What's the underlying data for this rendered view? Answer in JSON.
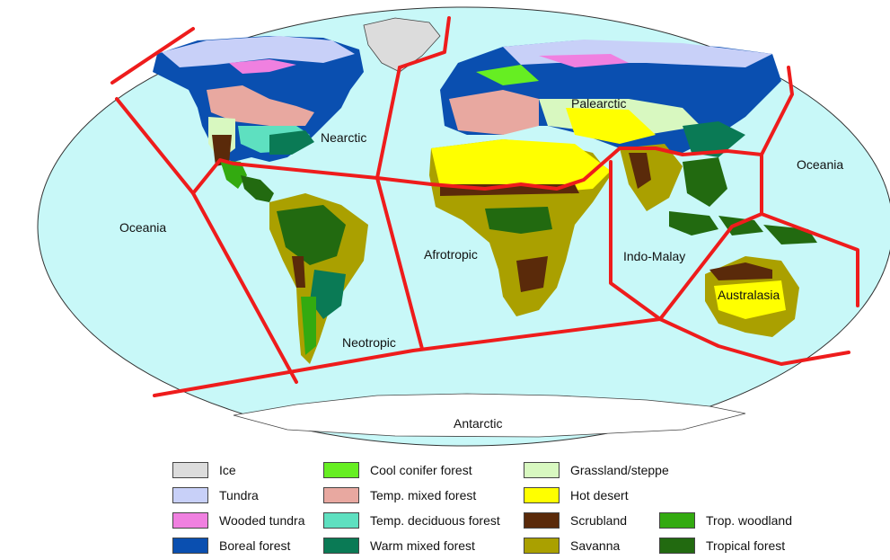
{
  "regions": {
    "nearctic": "Nearctic",
    "palearctic": "Palearctic",
    "oceania_east": "Oceania",
    "oceania_west": "Oceania",
    "afrotropic": "Afrotropic",
    "indo_malay": "Indo-Malay",
    "neotropic": "Neotropic",
    "australasia": "Australasia",
    "antarctic": "Antarctic"
  },
  "legend": [
    {
      "label": "Ice",
      "color": "#dcdcdc"
    },
    {
      "label": "Tundra",
      "color": "#c8d0f8"
    },
    {
      "label": "Wooded tundra",
      "color": "#f080e0"
    },
    {
      "label": "Boreal forest",
      "color": "#0a4fb0"
    },
    {
      "label": "Cool conifer forest",
      "color": "#66ee22"
    },
    {
      "label": "Temp. mixed forest",
      "color": "#e8a8a0"
    },
    {
      "label": "Temp. deciduous forest",
      "color": "#5ee0c0"
    },
    {
      "label": "Warm mixed forest",
      "color": "#0a7a55"
    },
    {
      "label": "Grassland/steppe",
      "color": "#d8f8c0"
    },
    {
      "label": "Hot desert",
      "color": "#ffff00"
    },
    {
      "label": "Scrubland",
      "color": "#5a2a0a"
    },
    {
      "label": "Savanna",
      "color": "#aaa000"
    },
    {
      "label": "Trop. woodland",
      "color": "#33aa10"
    },
    {
      "label": "Tropical forest",
      "color": "#226a10"
    }
  ],
  "colors": {
    "ocean": "#c8f8f8",
    "boundary": "#ee1c1c",
    "antarctic_land": "#ffffff"
  }
}
